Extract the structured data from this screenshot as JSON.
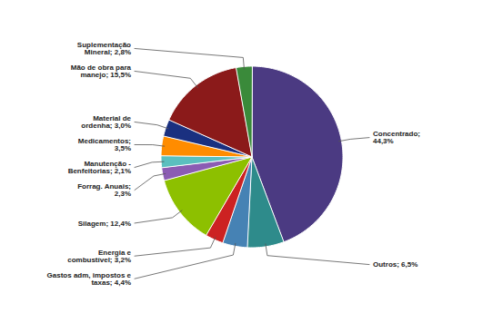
{
  "chart_data": {
    "type": "pie",
    "categories": [
      "Concentrado;\n44,3%",
      "Outros; 6,5%",
      "Gastos adm, impostos e\ntaxas; 4,4%",
      "Energia e\ncombustível; 3,2%",
      "Silagem; 12,4%",
      "Forrag. Anuais;\n2,3%",
      "Manutenção -\nBenfeitorias; 2,1%",
      "Medicamentos;\n3,5%",
      "Material de\nordenha; 3,0%",
      "Mão de obra para\nmanejo; 15,5%",
      "Suplementação\nMineral; 2,8%"
    ],
    "values": [
      44.3,
      6.5,
      4.4,
      3.2,
      12.4,
      2.3,
      2.1,
      3.5,
      3.0,
      15.5,
      2.8
    ],
    "colors": [
      "#4B3A82",
      "#2E8B8B",
      "#4682B4",
      "#CC2222",
      "#8DC000",
      "#8B5CB3",
      "#5BBFBF",
      "#FF8C00",
      "#1A3080",
      "#8B1A1A",
      "#3A8A3A"
    ]
  }
}
